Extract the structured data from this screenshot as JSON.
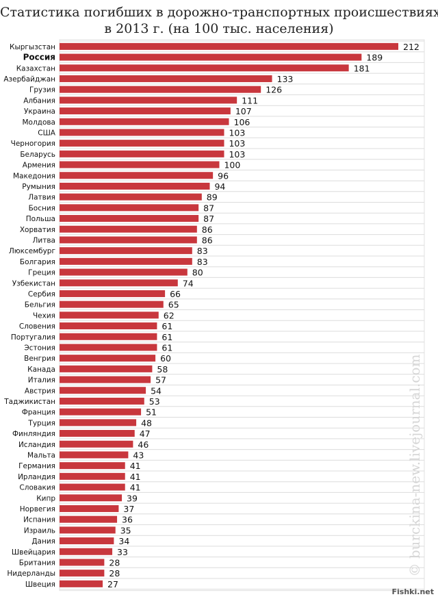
{
  "chart_data": {
    "type": "bar",
    "orientation": "horizontal",
    "title_lines": [
      "Статистика погибших в дорожно-транспортных происшествиях",
      "в 2013 г. (на 100 тыс. населения)"
    ],
    "highlight": "Россия",
    "bar_color": "#c8373d",
    "grid": true,
    "categories": [
      "Кыргызстан",
      "Россия",
      "Казахстан",
      "Азербайджан",
      "Грузия",
      "Албания",
      "Украина",
      "Молдова",
      "США",
      "Черногория",
      "Беларусь",
      "Армения",
      "Македония",
      "Румыния",
      "Латвия",
      "Босния",
      "Польша",
      "Хорватия",
      "Литва",
      "Люксембург",
      "Болгария",
      "Греция",
      "Узбекистан",
      "Сербия",
      "Бельгия",
      "Чехия",
      "Словения",
      "Португалия",
      "Эстония",
      "Венгрия",
      "Канада",
      "Италия",
      "Австрия",
      "Таджикистан",
      "Франция",
      "Турция",
      "Финляндия",
      "Исландия",
      "Мальта",
      "Германия",
      "Ирландия",
      "Словакия",
      "Кипр",
      "Норвегия",
      "Испания",
      "Израиль",
      "Дания",
      "Швейцария",
      "Британия",
      "Нидерланды",
      "Швеция"
    ],
    "values": [
      212,
      189,
      181,
      133,
      126,
      111,
      107,
      106,
      103,
      103,
      103,
      100,
      96,
      94,
      89,
      87,
      87,
      86,
      86,
      83,
      83,
      80,
      74,
      66,
      65,
      62,
      61,
      61,
      61,
      60,
      58,
      57,
      54,
      53,
      51,
      48,
      47,
      46,
      43,
      41,
      41,
      41,
      39,
      37,
      36,
      35,
      34,
      33,
      28,
      28,
      27
    ]
  },
  "watermark": "© burckina-new.livejournal.com",
  "brand": "Fishki.net"
}
